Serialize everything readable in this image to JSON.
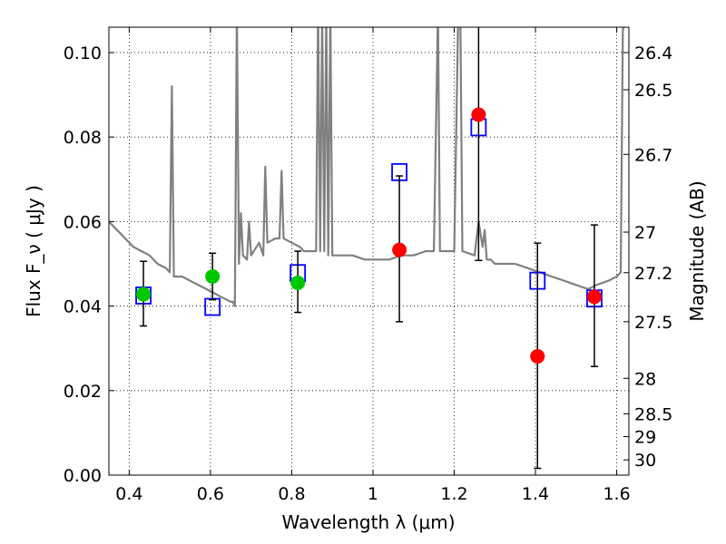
{
  "chart_data": {
    "type": "scatter",
    "title": "",
    "xlabel": "Wavelength  λ (μm)",
    "ylabel": "Flux  F_ν  ( μJy )",
    "y2label": "Magnitude (AB)",
    "xlim": [
      0.35,
      1.63
    ],
    "ylim": [
      0.0,
      0.106
    ],
    "grid": true,
    "x_ticks": [
      0.4,
      0.6,
      0.8,
      1.0,
      1.2,
      1.4,
      1.6
    ],
    "x_tick_labels": [
      "0.4",
      "0.6",
      "0.8",
      "1",
      "1.2",
      "1.4",
      "1.6"
    ],
    "y_ticks": [
      0.0,
      0.02,
      0.04,
      0.06,
      0.08,
      0.1
    ],
    "y_tick_labels": [
      "0.00",
      "0.02",
      "0.04",
      "0.06",
      "0.08",
      "0.10"
    ],
    "y2_ticks": [
      {
        "label": "26.4",
        "flux": 0.1
      },
      {
        "label": "26.5",
        "flux": 0.0912
      },
      {
        "label": "26.7",
        "flux": 0.0759
      },
      {
        "label": "27",
        "flux": 0.0575
      },
      {
        "label": "27.2",
        "flux": 0.0479
      },
      {
        "label": "27.5",
        "flux": 0.0363
      },
      {
        "label": "28",
        "flux": 0.0229
      },
      {
        "label": "28.5",
        "flux": 0.0145
      },
      {
        "label": "29",
        "flux": 0.0091
      },
      {
        "label": "30",
        "flux": 0.0036
      }
    ],
    "series": [
      {
        "type": "line",
        "color": "#808080",
        "x": [
          0.35,
          0.37,
          0.39,
          0.41,
          0.43,
          0.45,
          0.47,
          0.49,
          0.5,
          0.505,
          0.51,
          0.53,
          0.55,
          0.57,
          0.59,
          0.61,
          0.63,
          0.65,
          0.655,
          0.66,
          0.665,
          0.67,
          0.675,
          0.68,
          0.69,
          0.695,
          0.7,
          0.72,
          0.73,
          0.735,
          0.74,
          0.76,
          0.77,
          0.775,
          0.78,
          0.8,
          0.82,
          0.83,
          0.84,
          0.86,
          0.865,
          0.87,
          0.875,
          0.88,
          0.885,
          0.89,
          0.895,
          0.9,
          0.905,
          0.92,
          0.95,
          0.98,
          1.01,
          1.04,
          1.07,
          1.1,
          1.13,
          1.15,
          1.16,
          1.165,
          1.2,
          1.21,
          1.215,
          1.22,
          1.25,
          1.26,
          1.27,
          1.275,
          1.28,
          1.29,
          1.3,
          1.32,
          1.35,
          1.38,
          1.41,
          1.44,
          1.47,
          1.5,
          1.53,
          1.55,
          1.58,
          1.6,
          1.61,
          1.615,
          1.62,
          1.63
        ],
        "y": [
          0.06,
          0.058,
          0.056,
          0.054,
          0.053,
          0.052,
          0.05,
          0.049,
          0.048,
          0.092,
          0.047,
          0.047,
          0.046,
          0.045,
          0.044,
          0.043,
          0.042,
          0.041,
          0.041,
          0.04,
          0.11,
          0.05,
          0.062,
          0.052,
          0.051,
          0.06,
          0.052,
          0.055,
          0.052,
          0.073,
          0.055,
          0.056,
          0.056,
          0.072,
          0.056,
          0.055,
          0.054,
          0.053,
          0.053,
          0.053,
          0.11,
          0.053,
          0.11,
          0.053,
          0.11,
          0.052,
          0.11,
          0.052,
          0.052,
          0.052,
          0.052,
          0.051,
          0.051,
          0.051,
          0.052,
          0.052,
          0.053,
          0.053,
          0.11,
          0.053,
          0.053,
          0.11,
          0.11,
          0.053,
          0.052,
          0.06,
          0.054,
          0.058,
          0.051,
          0.051,
          0.05,
          0.05,
          0.05,
          0.049,
          0.048,
          0.047,
          0.046,
          0.045,
          0.044,
          0.045,
          0.046,
          0.047,
          0.048,
          0.105,
          0.11,
          0.11
        ]
      },
      {
        "type": "scatter",
        "marker": "square",
        "color": "#0000ff",
        "x": [
          0.435,
          0.605,
          0.815,
          1.065,
          1.26,
          1.405,
          1.545
        ],
        "y": [
          0.0425,
          0.0398,
          0.0478,
          0.0717,
          0.0823,
          0.046,
          0.0418
        ]
      },
      {
        "type": "errorbar",
        "marker": "circle",
        "color": "#00c800",
        "x": [
          0.435,
          0.605,
          0.815
        ],
        "y": [
          0.0428,
          0.047,
          0.0455
        ],
        "yerr_low": [
          0.0075,
          0.0055,
          0.007
        ],
        "yerr_high": [
          0.0078,
          0.0055,
          0.0075
        ]
      },
      {
        "type": "errorbar",
        "marker": "circle",
        "color": "#ff0000",
        "x": [
          1.065,
          1.26,
          1.405,
          1.545
        ],
        "y": [
          0.0533,
          0.0853,
          0.0281,
          0.0422
        ],
        "yerr_low": [
          0.017,
          0.0345,
          0.0265,
          0.0165
        ],
        "yerr_high": [
          0.0175,
          0.021,
          0.0268,
          0.017
        ]
      }
    ]
  }
}
